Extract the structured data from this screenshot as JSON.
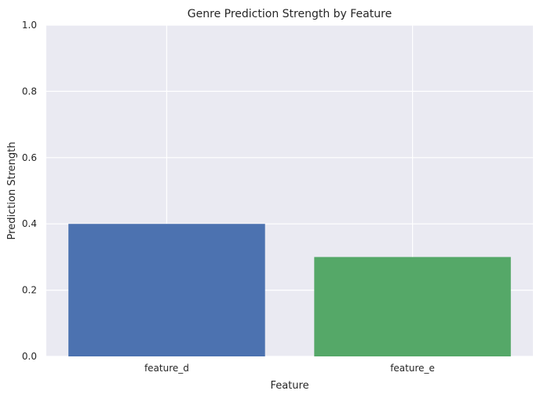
{
  "chart_data": {
    "type": "bar",
    "title": "Genre Prediction Strength by Feature",
    "xlabel": "Feature",
    "ylabel": "Prediction Strength",
    "categories": [
      "feature_d",
      "feature_e"
    ],
    "values": [
      0.4,
      0.3
    ],
    "bar_colors": [
      "#4c72b0",
      "#55a868"
    ],
    "ylim": [
      0,
      1
    ],
    "yticks": [
      0.0,
      0.2,
      0.4,
      0.6,
      0.8,
      1.0
    ],
    "ytick_labels": [
      "0.0",
      "0.2",
      "0.4",
      "0.6",
      "0.8",
      "1.0"
    ],
    "grid": true,
    "background_color": "#eaeaf2",
    "grid_color": "#ffffff"
  }
}
